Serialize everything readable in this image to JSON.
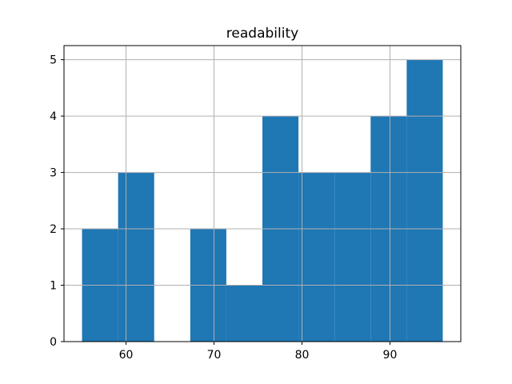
{
  "chart_data": {
    "type": "histogram",
    "title": "readability",
    "xlabel": "",
    "ylabel": "",
    "bin_edges": [
      55.0,
      59.1,
      63.2,
      67.3,
      71.4,
      75.5,
      79.6,
      83.7,
      87.8,
      91.9,
      96.0
    ],
    "counts": [
      2,
      3,
      0,
      2,
      1,
      4,
      3,
      3,
      4,
      5
    ],
    "xlim": [
      52.95,
      98.05
    ],
    "ylim": [
      0,
      5.25
    ],
    "x_ticks": [
      60,
      70,
      80,
      90
    ],
    "y_ticks": [
      0,
      1,
      2,
      3,
      4,
      5
    ],
    "grid": true,
    "legend": "none",
    "bar_color": "#1f77b4",
    "grid_color": "#b0b0b0",
    "spine_color": "#000000",
    "background_color": "#ffffff"
  }
}
